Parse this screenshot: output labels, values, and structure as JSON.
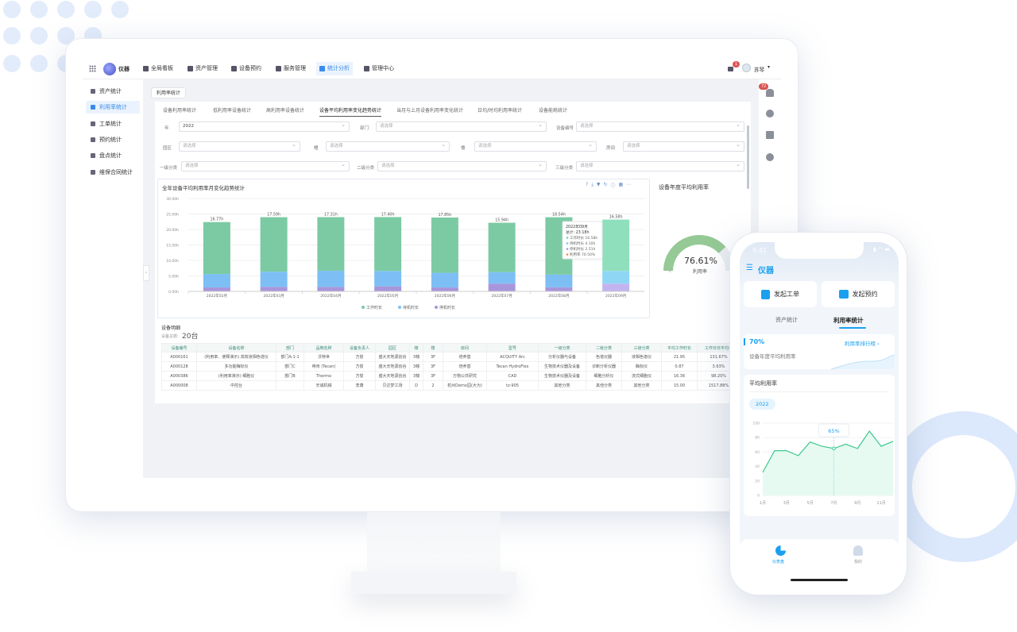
{
  "app": {
    "logo_text": "仪器"
  },
  "nav": {
    "items": [
      {
        "label": "全局看板",
        "icon": "dashboard-icon"
      },
      {
        "label": "资产管理",
        "icon": "asset-icon"
      },
      {
        "label": "设备预约",
        "icon": "calendar-icon"
      },
      {
        "label": "服务管理",
        "icon": "service-icon"
      },
      {
        "label": "统计分析",
        "icon": "chart-icon",
        "active": true
      },
      {
        "label": "管理中心",
        "icon": "settings-icon"
      }
    ],
    "message_badge": "1",
    "user_name": "苏琴"
  },
  "sidebar": {
    "items": [
      {
        "label": "资产统计"
      },
      {
        "label": "利用率统计",
        "active": true
      },
      {
        "label": "工单统计"
      },
      {
        "label": "预约统计"
      },
      {
        "label": "盘点统计"
      },
      {
        "label": "维保合同统计"
      }
    ]
  },
  "breadcrumb": "利用率统计",
  "tabs": [
    "设备利用率统计",
    "低利用率设备统计",
    "高利用率设备统计",
    "设备平均利用率变化趋势统计",
    "当月与上月设备利用率变化统计",
    "日均/时均利用率统计",
    "设备能耗统计"
  ],
  "filters": {
    "placeholder": "请选择",
    "year_label": "年",
    "year_value": "2022",
    "dept_label": "部门",
    "device_no_label": "设备编号",
    "park_label": "园区",
    "building_label": "幢",
    "floor_label": "楼",
    "room_label": "房间",
    "cat1_label": "一级分类",
    "cat2_label": "二级分类",
    "cat3_label": "三级分类"
  },
  "rail": {
    "notification_badge": "72"
  },
  "chart_data": {
    "type": "bar",
    "stacked": true,
    "title": "全年设备平均利用率月变化趋势统计",
    "categories": [
      "2022年02月",
      "2022年03月",
      "2022年04月",
      "2022年05月",
      "2022年06月",
      "2022年07月",
      "2022年08月",
      "2022年09月"
    ],
    "ylim": [
      0,
      30
    ],
    "yticks": [
      "0.00h",
      "5.00h",
      "10.00h",
      "15.00h",
      "20.00h",
      "25.00h",
      "30.00h"
    ],
    "grid": true,
    "legend": "bottom",
    "series": [
      {
        "name": "工作时长",
        "color": "#7ccaa3",
        "values": [
          16.77,
          17.59,
          17.31,
          17.4,
          17.85,
          15.94,
          18.54,
          16.58
        ]
      },
      {
        "name": "待机时长",
        "color": "#7dbff5",
        "values": [
          4.35,
          4.9,
          5.22,
          4.98,
          4.75,
          3.71,
          4.1,
          4.1
        ]
      },
      {
        "name": "停机时长",
        "color": "#a896db",
        "values": [
          1.27,
          1.47,
          1.44,
          1.62,
          1.26,
          2.52,
          1.31,
          2.51
        ]
      }
    ],
    "tooltip": {
      "title": "2022年09月",
      "total": "总计: 23.18h",
      "lines": [
        "工作时长  16.58h",
        "待机时长  4.10h",
        "停机时长  2.51h",
        "利用率    70.50%"
      ],
      "colors": [
        "#7ccaa3",
        "#7dbff5",
        "#a896db",
        "#f08a3c"
      ]
    }
  },
  "gauge": {
    "title": "设备年度平均利用率",
    "value": "76.61%",
    "percent": 76.61,
    "label": "利用率",
    "min": "0",
    "color": "#95c995"
  },
  "detail": {
    "title": "设备明细",
    "count_label": "设备总数:",
    "count_value": "20台",
    "columns": [
      "设备编号",
      "设备名称",
      "部门",
      "品牌名称",
      "设备负责人",
      "园区",
      "幢",
      "楼",
      "房间",
      "型号",
      "一级分类",
      "二级分类",
      "三级分类",
      "平均工作时长",
      "工作日日平均利"
    ],
    "rows": [
      [
        "A000161",
        "(利用率、使释演示) 高效液相色谱仪",
        "部门A-1-1",
        "沃特世",
        "方俊",
        "盛大天地源创谷",
        "3幢",
        "3F",
        "培养基",
        "ACQUITY Arc",
        "分析仪器与设备",
        "色谱仪器",
        "液相色谱仪",
        "21.95",
        "131.67%"
      ],
      [
        "A000128",
        "多功能酶标仪",
        "部门C",
        "帝肯 (Tecan)",
        "方俊",
        "盛大天地源创谷",
        "3幢",
        "3F",
        "培养基",
        "Tecan HydroFlex",
        "生物技术仪器及设备",
        "诊断分析仪器",
        "酶标仪",
        "0.87",
        "3.63%"
      ],
      [
        "A000386",
        "(利用率演示) 细胞仪",
        "部门B",
        "Thermo",
        "方俊",
        "盛大天地源创谷",
        "3幢",
        "3F",
        "万物公共研究",
        "CAD",
        "生物技术仪器及设备",
        "细胞分析仪",
        "流式细胞仪",
        "16.36",
        "98.20%"
      ],
      [
        "A000008",
        "中控台",
        "",
        "天诚机械",
        "李康",
        "贝达梦工场",
        "D",
        "2",
        "杭州Demo园(大为)",
        "tz-905",
        "其他分类",
        "其他分类",
        "其他分类",
        "15.00",
        "1517.88%"
      ]
    ]
  },
  "phone": {
    "time": "9:41",
    "title": "仪器",
    "btn_workorder": "发起工单",
    "btn_booking": "发起预约",
    "tab_asset": "资产统计",
    "tab_util": "利用率统计",
    "kpi_value": "70%",
    "kpi_label": "设备年度平均利用率",
    "ranking_link": "利用率排行榜",
    "avg_title": "平均利用率",
    "year_chip": "2022",
    "accent": "#1aa0f0",
    "chart": {
      "type": "area",
      "x": [
        "1月",
        "2月",
        "3月",
        "4月",
        "5月",
        "6月",
        "7月",
        "8月",
        "9月",
        "10月",
        "11月",
        "12月"
      ],
      "xticks": [
        "1月",
        "3月",
        "5月",
        "7月",
        "9月",
        "11月"
      ],
      "values": [
        32,
        62,
        62,
        55,
        74,
        68,
        65,
        71,
        65,
        89,
        68,
        75
      ],
      "ylim": [
        0,
        100
      ],
      "yticks": [
        "0",
        "20",
        "40",
        "60",
        "80",
        "100"
      ],
      "tooltip": "65%",
      "color": "#3cc88e"
    },
    "bottom_nav": [
      {
        "label": "仪表盘",
        "active": true
      },
      {
        "label": "我的"
      }
    ]
  }
}
